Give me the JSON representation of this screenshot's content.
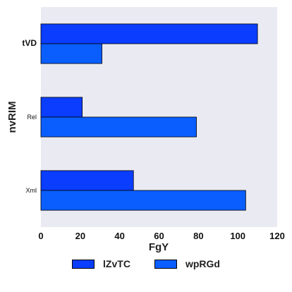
{
  "chart_data": {
    "type": "bar",
    "orientation": "horizontal",
    "categories": [
      "Xml",
      "Rel",
      "tVD"
    ],
    "series": [
      {
        "name": "lZvTC",
        "values": [
          47,
          21,
          110
        ],
        "color": "#0a3dfd"
      },
      {
        "name": "wpRGd",
        "values": [
          104,
          79,
          31
        ],
        "color": "#0a5efd"
      }
    ],
    "xlabel": "FgY",
    "ylabel": "nvRIM",
    "xlim": [
      0,
      120
    ],
    "xticks": [
      0,
      20,
      40,
      60,
      80,
      100,
      120
    ],
    "grid": false,
    "background": "#eaeaf2",
    "legend_position": "bottom-center"
  }
}
